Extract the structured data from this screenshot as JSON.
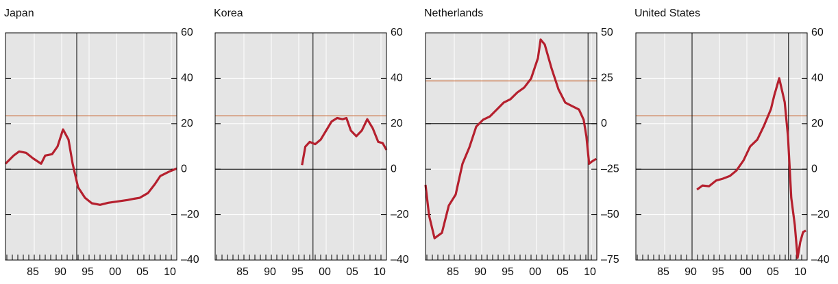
{
  "chart_data": [
    {
      "type": "line",
      "title": "Japan",
      "color": "#b5202e",
      "x": [
        1979.75,
        1981.25,
        1982.25,
        1983.5,
        1984.75,
        1986.25,
        1987,
        1988.25,
        1989.25,
        1990.25,
        1991.25,
        1992,
        1993,
        1994.25,
        1995.5,
        1997,
        1998.5,
        2000.25,
        2002,
        2003.25,
        2004.25,
        2005.75,
        2007,
        2008,
        2009.5,
        2011
      ],
      "values": [
        2.4,
        6,
        7.8,
        7.2,
        4.8,
        2.4,
        6,
        6.6,
        10,
        17.5,
        13,
        2.4,
        -8,
        -12.6,
        -15,
        -15.7,
        -14.8,
        -14.2,
        -13.6,
        -13,
        -12.6,
        -10.5,
        -6.6,
        -3,
        -1.2,
        0.3
      ],
      "xlim": [
        1979.75,
        2011
      ],
      "ylim": [
        -40,
        60
      ],
      "xticks": [
        {
          "value": 1985,
          "label": "85"
        },
        {
          "value": 1990,
          "label": "90"
        },
        {
          "value": 1995,
          "label": "95"
        },
        {
          "value": 2000,
          "label": "00"
        },
        {
          "value": 2005,
          "label": "05"
        },
        {
          "value": 2010,
          "label": "10"
        }
      ],
      "yticks": [
        {
          "value": -40,
          "label": "–40"
        },
        {
          "value": -20,
          "label": "–20"
        },
        0,
        20,
        40,
        60
      ],
      "reference_line": {
        "value": 23.5,
        "color": "#c8602a"
      },
      "vlines": [
        1992.75
      ]
    },
    {
      "type": "line",
      "title": "Korea",
      "color": "#b5202e",
      "x": [
        1995.6,
        1996.2,
        1997,
        1998,
        1999,
        2000,
        2001,
        2002,
        2003,
        2003.7,
        2004.5,
        2005.5,
        2006.5,
        2007.5,
        2008.5,
        2009.5,
        2010.3,
        2011
      ],
      "values": [
        1.8,
        9.9,
        12,
        11,
        13,
        17,
        21,
        22.5,
        22,
        22.5,
        17,
        14.5,
        17,
        22,
        18,
        12,
        11.5,
        8.5
      ],
      "xlim": [
        1979.75,
        2011
      ],
      "ylim": [
        -40,
        60
      ],
      "xticks": [
        {
          "value": 1985,
          "label": "85"
        },
        {
          "value": 1990,
          "label": "90"
        },
        {
          "value": 1995,
          "label": "95"
        },
        {
          "value": 2000,
          "label": "00"
        },
        {
          "value": 2005,
          "label": "05"
        },
        {
          "value": 2010,
          "label": "10"
        }
      ],
      "yticks": [
        {
          "value": -40,
          "label": "–40"
        },
        {
          "value": -20,
          "label": "–20"
        },
        0,
        20,
        40,
        60
      ],
      "reference_line": {
        "value": 23.5,
        "color": "#c8602a"
      },
      "vlines": [
        1997.6
      ]
    },
    {
      "type": "line",
      "title": "Netherlands",
      "color": "#b5202e",
      "x": [
        1979.75,
        1980.4,
        1981.4,
        1982.75,
        1984,
        1985.25,
        1986.5,
        1987.75,
        1989,
        1990.25,
        1991.5,
        1992.75,
        1994,
        1995.25,
        1996.5,
        1997.75,
        1999,
        2000.25,
        2000.75,
        2001.5,
        2002.75,
        2004,
        2005.25,
        2006.5,
        2007.75,
        2008.6,
        2009.1,
        2009.6,
        2010.1,
        2010.9
      ],
      "values": [
        -33.6,
        -50.5,
        -63,
        -60,
        -45,
        -39,
        -22,
        -13,
        -1.6,
        2.2,
        4,
        7.8,
        11.6,
        13.5,
        17.2,
        19.9,
        24.8,
        36,
        46.3,
        43.6,
        30.4,
        19,
        11.6,
        9.7,
        7.8,
        2.2,
        -7,
        -22,
        -20.8,
        -19.3
      ],
      "xlim": [
        1979.75,
        2011
      ],
      "ylim": [
        -75,
        50
      ],
      "xticks": [
        {
          "value": 1985,
          "label": "85"
        },
        {
          "value": 1990,
          "label": "90"
        },
        {
          "value": 1995,
          "label": "95"
        },
        {
          "value": 2000,
          "label": "00"
        },
        {
          "value": 2005,
          "label": "05"
        },
        {
          "value": 2010,
          "label": "10"
        }
      ],
      "yticks": [
        {
          "value": -75,
          "label": "–75"
        },
        {
          "value": -50,
          "label": "–50"
        },
        {
          "value": -25,
          "label": "–25"
        },
        0,
        25,
        50
      ],
      "reference_line": {
        "value": 23.6,
        "color": "#c8602a"
      },
      "vlines": [
        2009.4
      ]
    },
    {
      "type": "line",
      "title": "United States",
      "color": "#b5202e",
      "x": [
        1990.9,
        1991.9,
        1993.1,
        1994.4,
        1995.6,
        1996.9,
        1998.1,
        1999.4,
        2000.6,
        2001.9,
        2003.1,
        2004.4,
        2005,
        2005.9,
        2006.9,
        2007.5,
        2008.1,
        2008.75,
        2009.25,
        2009.75,
        2010.25,
        2010.75
      ],
      "values": [
        -9,
        -7.2,
        -7.5,
        -5,
        -4.2,
        -3,
        -0.6,
        3.9,
        10,
        13,
        19,
        26.5,
        32.5,
        40,
        29.5,
        14.5,
        -12.6,
        -24.7,
        -39,
        -32,
        -27.7,
        -27
      ],
      "xlim": [
        1979.75,
        2011
      ],
      "ylim": [
        -40,
        60
      ],
      "xticks": [
        {
          "value": 1985,
          "label": "85"
        },
        {
          "value": 1990,
          "label": "90"
        },
        {
          "value": 1995,
          "label": "95"
        },
        {
          "value": 2000,
          "label": "00"
        },
        {
          "value": 2005,
          "label": "05"
        },
        {
          "value": 2010,
          "label": "10"
        }
      ],
      "yticks": [
        {
          "value": -40,
          "label": "–40"
        },
        {
          "value": -20,
          "label": "–20"
        },
        0,
        20,
        40,
        60
      ],
      "reference_line": {
        "value": 23.5,
        "color": "#c8602a"
      },
      "vlines": [
        1990,
        2007.6
      ]
    }
  ]
}
